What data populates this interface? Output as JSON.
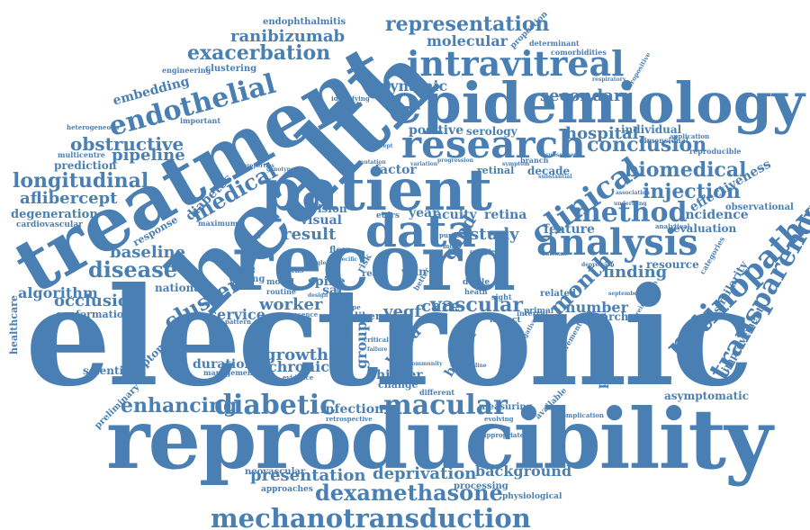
{
  "words": {
    "electronic": "electronic",
    "reproducibility": "reproducibility",
    "treatment": "treatment",
    "health": "health",
    "epidemiology": "epidemiology",
    "record": "record",
    "patient": "patient",
    "research": "research",
    "analysis": "analysis",
    "data": "data",
    "intravitreal": "intravitreal",
    "endothelial": "endothelial",
    "mechanotransduction": "mechanotransduction",
    "dexamethasone": "dexamethasone",
    "diabetic": "diabetic",
    "macular": "macular",
    "transparency": "transparency",
    "retinopathy": "retinopathy",
    "clinical": "clinical",
    "method": "method",
    "biomedical": "biomedical",
    "conclusion": "conclusion",
    "injection": "injection",
    "medical": "medical",
    "cluster": "cluster",
    "disease": "disease",
    "longitudinal": "longitudinal",
    "obstructive": "obstructive",
    "exacerbation": "exacerbation",
    "representation": "representation",
    "ranibizumab": "ranibizumab",
    "molecular": "molecular",
    "secondary": "secondary",
    "dynamic": "dynamic",
    "positive": "positive",
    "hospital": "hospital",
    "individual": "individual",
    "serology": "serology",
    "pipeline": "pipeline",
    "prediction": "prediction",
    "aflibercept": "aflibercept",
    "degeneration": "degeneration",
    "cardiovascular": "cardiovascular",
    "algorithm": "algorithm",
    "baseline": "baseline",
    "occlusion": "occlusion",
    "conformational": "conformational",
    "national": "national",
    "service": "service",
    "worker": "worker",
    "vegf": "vegf",
    "care": "care",
    "vascular": "vascular",
    "month": "month",
    "feature": "feature",
    "finding": "finding",
    "resource": "resource",
    "incidence": "incidence",
    "evaluation": "evaluation",
    "effectiveness": "effectiveness",
    "similarity": "similarity",
    "improvement": "improvement",
    "observational": "observational",
    "number": "number",
    "researcher": "researcher",
    "population": "population",
    "growth": "growth",
    "chronic": "chronic",
    "group": "group",
    "duration": "duration",
    "management": "management",
    "enhancing": "enhancing",
    "infection": "infection",
    "retrospective": "retrospective",
    "higher": "higher",
    "change": "change",
    "burden": "burden",
    "world": "world",
    "measuring": "measuring",
    "presentation": "presentation",
    "deprivation": "deprivation",
    "background": "background",
    "neovascular": "neovascular",
    "approaches": "approaches",
    "processing": "processing",
    "physiological": "physiological",
    "asymptomatic": "asymptomatic",
    "complication": "complication",
    "available": "available",
    "appropriate": "appropriate",
    "scientific": "scientific",
    "symptomatic": "symptomatic",
    "preliminary": "preliminary",
    "healthcare": "healthcare",
    "diabetes": "diabetes",
    "response": "response",
    "maximum": "maximum",
    "visual": "visual",
    "vision": "vision",
    "result": "result",
    "study": "study",
    "copd": "copd",
    "year": "year",
    "acuity": "acuity",
    "retina": "retina",
    "etdrs": "etdrs",
    "factor": "factor",
    "retinal": "retinal",
    "decade": "decade",
    "branch": "branch",
    "sight": "sight",
    "primary": "primary",
    "interval": "interval",
    "impact": "impact",
    "decile": "decile",
    "heath": "heath",
    "spike": "spike",
    "waning": "waning",
    "model": "model",
    "routine": "routine",
    "presence": "presence",
    "pattern": "pattern",
    "caliber": "caliber",
    "status": "status",
    "flow": "flow",
    "engineering": "engineering",
    "clustering": "clustering",
    "embedding": "embedding",
    "endophthalmitis": "endophthalmitis",
    "identifying": "identifying",
    "important": "important",
    "heterogeneous": "heterogeneous",
    "multicentre": "multicentre",
    "proportion": "proportion",
    "determinant": "determinant",
    "comorbidities": "comorbidities",
    "seropositive": "seropositive",
    "application": "application",
    "dimensional": "dimensional",
    "reproducible": "reproducible",
    "analytical": "analytical",
    "categories": "categories",
    "reinfection": "reinfection",
    "september": "september",
    "antibodies": "antibodies",
    "evidence": "evidence",
    "different": "different",
    "critical": "critical",
    "related": "related",
    "kingdom": "kingdom",
    "real": "real",
    "risk": "risk",
    "vein": "vein",
    "better": "better",
    "evolving": "evolving",
    "community": "community",
    "discipline": "discipline",
    "measurement": "measurement",
    "seronegative": "seronegative",
    "respiratory": "respiratory",
    "subsequent": "subsequent",
    "symptom": "symptom",
    "complex": "complex",
    "purpose": "purpose",
    "type": "type",
    "report": "report",
    "more": "more",
    "laser": "laser",
    "single": "single",
    "sar": "sar",
    "outcome": "outcome",
    "depression": "depression",
    "association": "association",
    "underlying": "underlying",
    "progression": "progression",
    "substantial": "substantial",
    "properties": "properties",
    "genotypes": "genotypes",
    "validation": "validation",
    "mutation": "mutation",
    "concept": "concept",
    "variation": "variation",
    "specific": "specific",
    "design": "design",
    "linked": "linked",
    "failure": "failure",
    "colour": "colour"
  }
}
